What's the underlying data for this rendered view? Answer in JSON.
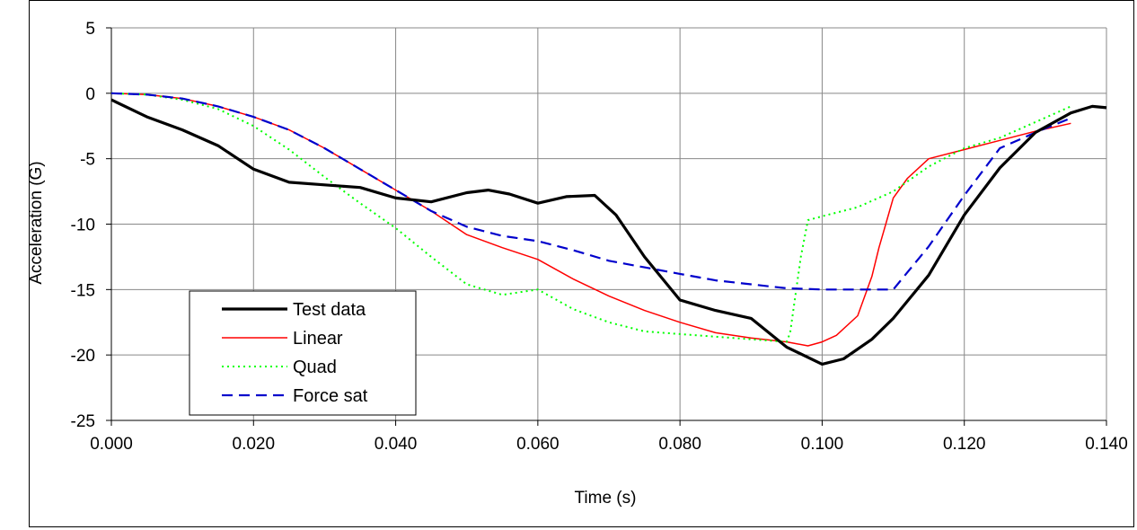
{
  "chart_data": {
    "type": "line",
    "title": "",
    "xlabel": "Time (s)",
    "ylabel": "Acceleration (G)",
    "xlim": [
      0.0,
      0.14
    ],
    "ylim": [
      -25,
      5
    ],
    "x_ticks": [
      "0.000",
      "0.020",
      "0.040",
      "0.060",
      "0.080",
      "0.100",
      "0.120",
      "0.140"
    ],
    "y_ticks": [
      "5",
      "0",
      "-5",
      "-10",
      "-15",
      "-20",
      "-25"
    ],
    "grid": true,
    "legend_position": "bottom-left",
    "series": [
      {
        "name": "Test data",
        "color": "#000000",
        "style": "solid",
        "x": [
          0.0,
          0.005,
          0.01,
          0.015,
          0.02,
          0.025,
          0.03,
          0.035,
          0.04,
          0.045,
          0.05,
          0.053,
          0.056,
          0.06,
          0.064,
          0.068,
          0.071,
          0.075,
          0.08,
          0.085,
          0.09,
          0.095,
          0.1,
          0.103,
          0.107,
          0.11,
          0.115,
          0.12,
          0.125,
          0.13,
          0.135,
          0.138,
          0.14
        ],
        "y": [
          -0.5,
          -1.8,
          -2.8,
          -4.0,
          -5.8,
          -6.8,
          -7.0,
          -7.2,
          -8.0,
          -8.3,
          -7.6,
          -7.4,
          -7.7,
          -8.4,
          -7.9,
          -7.8,
          -9.3,
          -12.5,
          -15.8,
          -16.6,
          -17.2,
          -19.4,
          -20.7,
          -20.3,
          -18.8,
          -17.2,
          -13.9,
          -9.3,
          -5.7,
          -3.0,
          -1.5,
          -1.0,
          -1.1
        ]
      },
      {
        "name": "Linear",
        "color": "#ff0000",
        "style": "solid",
        "x": [
          0.0,
          0.005,
          0.01,
          0.015,
          0.02,
          0.025,
          0.03,
          0.035,
          0.04,
          0.045,
          0.05,
          0.055,
          0.06,
          0.065,
          0.07,
          0.075,
          0.08,
          0.085,
          0.09,
          0.095,
          0.098,
          0.1,
          0.102,
          0.105,
          0.107,
          0.108,
          0.109,
          0.11,
          0.112,
          0.115,
          0.12,
          0.125,
          0.13,
          0.135
        ],
        "y": [
          0.0,
          -0.1,
          -0.4,
          -1.0,
          -1.8,
          -2.8,
          -4.2,
          -5.8,
          -7.4,
          -9.0,
          -10.8,
          -11.8,
          -12.7,
          -14.2,
          -15.5,
          -16.6,
          -17.5,
          -18.3,
          -18.7,
          -19.0,
          -19.3,
          -19.0,
          -18.5,
          -17.0,
          -14.0,
          -11.8,
          -9.9,
          -8.0,
          -6.5,
          -5.0,
          -4.3,
          -3.6,
          -2.9,
          -2.3
        ]
      },
      {
        "name": "Quad",
        "color": "#00ff00",
        "style": "dotted",
        "x": [
          0.0,
          0.005,
          0.01,
          0.015,
          0.02,
          0.025,
          0.03,
          0.035,
          0.04,
          0.045,
          0.05,
          0.055,
          0.06,
          0.065,
          0.07,
          0.075,
          0.08,
          0.085,
          0.09,
          0.095,
          0.0955,
          0.097,
          0.098,
          0.1,
          0.105,
          0.11,
          0.115,
          0.12,
          0.125,
          0.13,
          0.135
        ],
        "y": [
          0.0,
          -0.1,
          -0.5,
          -1.2,
          -2.5,
          -4.3,
          -6.4,
          -8.4,
          -10.3,
          -12.5,
          -14.6,
          -15.4,
          -15.0,
          -16.5,
          -17.5,
          -18.2,
          -18.4,
          -18.6,
          -18.8,
          -19.0,
          -18.3,
          -12.5,
          -9.7,
          -9.4,
          -8.7,
          -7.5,
          -5.6,
          -4.2,
          -3.4,
          -2.2,
          -1.0
        ]
      },
      {
        "name": "Force sat",
        "color": "#0000cc",
        "style": "dashed",
        "x": [
          0.0,
          0.005,
          0.01,
          0.015,
          0.02,
          0.025,
          0.03,
          0.035,
          0.04,
          0.045,
          0.05,
          0.055,
          0.06,
          0.065,
          0.07,
          0.075,
          0.08,
          0.085,
          0.09,
          0.095,
          0.1,
          0.105,
          0.11,
          0.115,
          0.12,
          0.125,
          0.13,
          0.135
        ],
        "y": [
          0.0,
          -0.1,
          -0.4,
          -1.0,
          -1.8,
          -2.8,
          -4.2,
          -5.8,
          -7.4,
          -9.0,
          -10.2,
          -10.9,
          -11.3,
          -12.0,
          -12.8,
          -13.3,
          -13.8,
          -14.3,
          -14.6,
          -14.9,
          -15.0,
          -15.0,
          -15.0,
          -11.7,
          -7.8,
          -4.2,
          -3.0,
          -1.9
        ]
      }
    ]
  }
}
